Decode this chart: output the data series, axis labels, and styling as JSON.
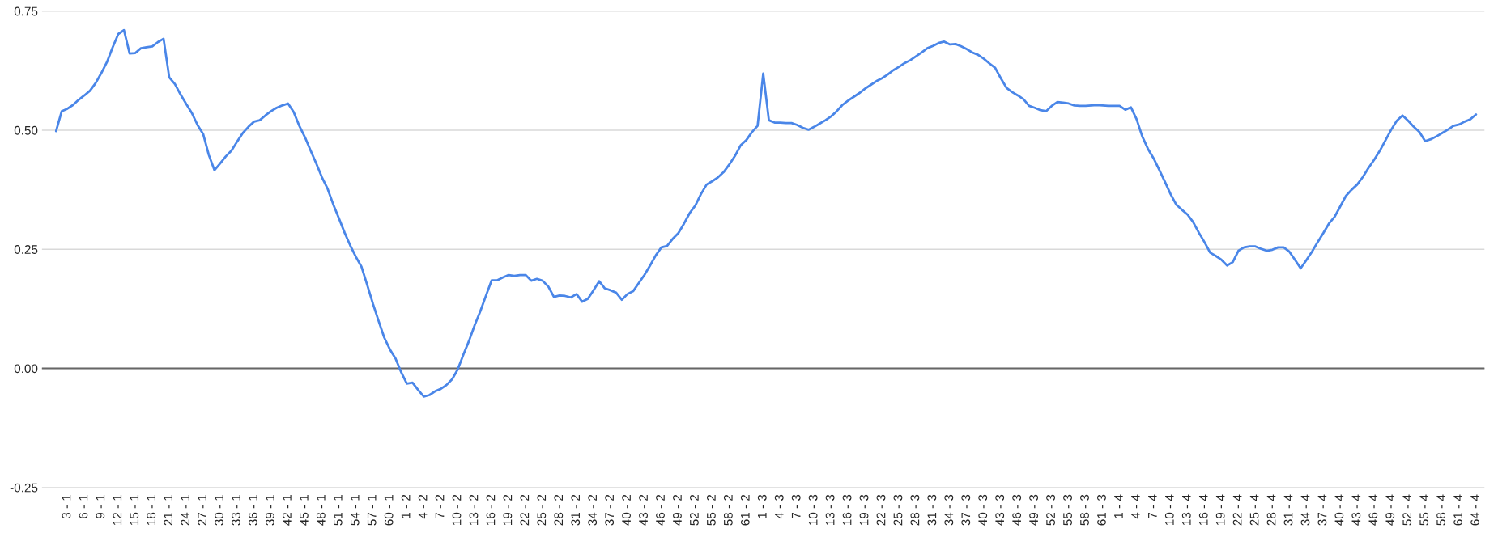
{
  "chart_data": {
    "type": "line",
    "categories": [
      null,
      null,
      "3 - 1",
      null,
      null,
      "6 - 1",
      null,
      null,
      "9 - 1",
      null,
      null,
      "12 - 1",
      null,
      null,
      "15 - 1",
      null,
      null,
      "18 - 1",
      null,
      null,
      "21 - 1",
      null,
      null,
      "24 - 1",
      null,
      null,
      "27 - 1",
      null,
      null,
      "30 - 1",
      null,
      null,
      "33 - 1",
      null,
      null,
      "36 - 1",
      null,
      null,
      "39 - 1",
      null,
      null,
      "42 - 1",
      null,
      null,
      "45 - 1",
      null,
      null,
      "48 - 1",
      null,
      null,
      "51 - 1",
      null,
      null,
      "54 - 1",
      null,
      null,
      "57 - 1",
      null,
      null,
      "60 - 1",
      null,
      null,
      "1 - 2",
      null,
      null,
      "4 - 2",
      null,
      null,
      "7 - 2",
      null,
      null,
      "10 - 2",
      null,
      null,
      "13 - 2",
      null,
      null,
      "16 - 2",
      null,
      null,
      "19 - 2",
      null,
      null,
      "22 - 2",
      null,
      null,
      "25 - 2",
      null,
      null,
      "28 - 2",
      null,
      null,
      "31 - 2",
      null,
      null,
      "34 - 2",
      null,
      null,
      "37 - 2",
      null,
      null,
      "40 - 2",
      null,
      null,
      "43 - 2",
      null,
      null,
      "46 - 2",
      null,
      null,
      "49 - 2",
      null,
      null,
      "52 - 2",
      null,
      null,
      "55 - 2",
      null,
      null,
      "58 - 2",
      null,
      null,
      "61 - 2",
      null,
      null,
      "1 - 3",
      null,
      null,
      "4 - 3",
      null,
      null,
      "7 - 3",
      null,
      null,
      "10 - 3",
      null,
      null,
      "13 - 3",
      null,
      null,
      "16 - 3",
      null,
      null,
      "19 - 3",
      null,
      null,
      "22 - 3",
      null,
      null,
      "25 - 3",
      null,
      null,
      "28 - 3",
      null,
      null,
      "31 - 3",
      null,
      null,
      "34 - 3",
      null,
      null,
      "37 - 3",
      null,
      null,
      "40 - 3",
      null,
      null,
      "43 - 3",
      null,
      null,
      "46 - 3",
      null,
      null,
      "49 - 3",
      null,
      null,
      "52 - 3",
      null,
      null,
      "55 - 3",
      null,
      null,
      "58 - 3",
      null,
      null,
      "61 - 3",
      null,
      null,
      "1 - 4",
      null,
      null,
      "4 - 4",
      null,
      null,
      "7 - 4",
      null,
      null,
      "10 - 4",
      null,
      null,
      "13 - 4",
      null,
      null,
      "16 - 4",
      null,
      null,
      "19 - 4",
      null,
      null,
      "22 - 4",
      null,
      null,
      "25 - 4",
      null,
      null,
      "28 - 4",
      null,
      null,
      "31 - 4",
      null,
      null,
      "34 - 4",
      null,
      null,
      "37 - 4",
      null,
      null,
      "40 - 4",
      null,
      null,
      "43 - 4",
      null,
      null,
      "46 - 4",
      null,
      null,
      "49 - 4",
      null,
      null,
      "52 - 4",
      null,
      null,
      "55 - 4",
      null,
      null,
      "58 - 4",
      null,
      null,
      "61 - 4",
      null,
      null,
      "64 - 4"
    ],
    "series": [
      {
        "color": "#4a86e8",
        "values": [
          0.498,
          0.54,
          0.545,
          0.553,
          0.564,
          0.573,
          0.583,
          0.599,
          0.62,
          0.643,
          0.674,
          0.702,
          0.71,
          0.661,
          0.662,
          0.672,
          0.674,
          0.676,
          0.685,
          0.692,
          0.611,
          0.597,
          0.575,
          0.555,
          0.536,
          0.511,
          0.492,
          0.448,
          0.416,
          0.43,
          0.445,
          0.457,
          0.476,
          0.494,
          0.507,
          0.518,
          0.521,
          0.531,
          0.54,
          0.547,
          0.552,
          0.556,
          0.538,
          0.509,
          0.485,
          0.457,
          0.43,
          0.401,
          0.377,
          0.344,
          0.315,
          0.285,
          0.258,
          0.234,
          0.213,
          0.175,
          0.136,
          0.1,
          0.065,
          0.04,
          0.021,
          -0.008,
          -0.032,
          -0.03,
          -0.045,
          -0.059,
          -0.056,
          -0.048,
          -0.043,
          -0.035,
          -0.023,
          -0.002,
          0.029,
          0.058,
          0.091,
          0.12,
          0.153,
          0.185,
          0.185,
          0.191,
          0.196,
          0.194,
          0.196,
          0.196,
          0.184,
          0.188,
          0.184,
          0.172,
          0.15,
          0.153,
          0.152,
          0.149,
          0.156,
          0.14,
          0.146,
          0.164,
          0.183,
          0.168,
          0.164,
          0.159,
          0.144,
          0.156,
          0.162,
          0.179,
          0.196,
          0.216,
          0.237,
          0.254,
          0.257,
          0.272,
          0.284,
          0.304,
          0.326,
          0.342,
          0.366,
          0.386,
          0.393,
          0.401,
          0.412,
          0.428,
          0.446,
          0.468,
          0.479,
          0.496,
          0.509,
          0.619,
          0.521,
          0.516,
          0.516,
          0.515,
          0.515,
          0.511,
          0.505,
          0.501,
          0.507,
          0.514,
          0.521,
          0.529,
          0.54,
          0.553,
          0.562,
          0.57,
          0.578,
          0.587,
          0.595,
          0.603,
          0.609,
          0.617,
          0.626,
          0.633,
          0.641,
          0.647,
          0.655,
          0.663,
          0.672,
          0.677,
          0.683,
          0.686,
          0.68,
          0.681,
          0.676,
          0.67,
          0.663,
          0.658,
          0.65,
          0.64,
          0.631,
          0.609,
          0.589,
          0.58,
          0.573,
          0.565,
          0.551,
          0.547,
          0.542,
          0.54,
          0.551,
          0.559,
          0.558,
          0.556,
          0.552,
          0.551,
          0.551,
          0.552,
          0.553,
          0.552,
          0.551,
          0.551,
          0.551,
          0.543,
          0.548,
          0.523,
          0.487,
          0.461,
          0.441,
          0.417,
          0.392,
          0.366,
          0.344,
          0.333,
          0.323,
          0.307,
          0.285,
          0.265,
          0.243,
          0.236,
          0.228,
          0.216,
          0.223,
          0.247,
          0.254,
          0.256,
          0.256,
          0.251,
          0.247,
          0.249,
          0.254,
          0.254,
          0.245,
          0.228,
          0.21,
          0.227,
          0.245,
          0.265,
          0.284,
          0.304,
          0.318,
          0.34,
          0.362,
          0.375,
          0.386,
          0.402,
          0.421,
          0.438,
          0.457,
          0.479,
          0.501,
          0.52,
          0.531,
          0.52,
          0.507,
          0.496,
          0.477,
          0.481,
          0.487,
          0.494,
          0.501,
          0.509,
          0.512,
          0.518,
          0.523,
          0.533
        ]
      }
    ],
    "ylim": [
      -0.25,
      0.75
    ],
    "yticks": [
      -0.25,
      {
        "value": 0,
        "label": "0.00"
      },
      0.25,
      {
        "value": 0.5,
        "label": "0.50"
      },
      0.75
    ],
    "grid": "y",
    "ref_lines": [
      {
        "axis": "y",
        "value": 0,
        "color": "#666666"
      }
    ]
  }
}
